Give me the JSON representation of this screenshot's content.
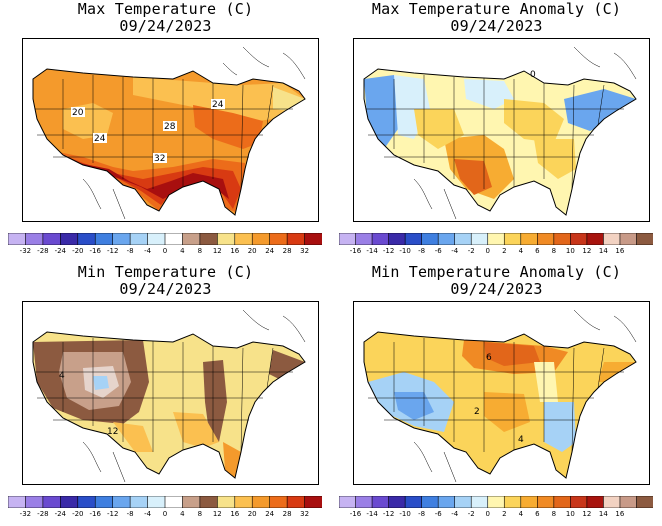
{
  "panels": [
    {
      "title": "Max Temperature (C)",
      "date": "09/24/2023",
      "kind": "abs",
      "map_labels": [
        "20",
        "24",
        "28",
        "24",
        "32"
      ],
      "legend_ticks": [
        "-32",
        "-28",
        "-24",
        "-20",
        "-16",
        "-12",
        "-8",
        "-4",
        "0",
        "4",
        "8",
        "12",
        "16",
        "20",
        "24",
        "28",
        "32"
      ]
    },
    {
      "title": "Max Temperature Anomaly (C)",
      "date": "09/24/2023",
      "kind": "anom",
      "map_labels": [
        "0"
      ],
      "legend_ticks": [
        "-16",
        "-14",
        "-12",
        "-10",
        "-8",
        "-6",
        "-4",
        "-2",
        "0",
        "2",
        "4",
        "6",
        "8",
        "10",
        "12",
        "14",
        "16"
      ]
    },
    {
      "title": "Min Temperature (C)",
      "date": "09/24/2023",
      "kind": "abs",
      "map_labels": [
        "4",
        "12"
      ],
      "legend_ticks": [
        "-32",
        "-28",
        "-24",
        "-20",
        "-16",
        "-12",
        "-8",
        "-4",
        "0",
        "4",
        "8",
        "12",
        "16",
        "20",
        "24",
        "28",
        "32"
      ]
    },
    {
      "title": "Min Temperature Anomaly (C)",
      "date": "09/24/2023",
      "kind": "anom",
      "map_labels": [
        "6",
        "2",
        "4"
      ],
      "legend_ticks": [
        "-16",
        "-14",
        "-12",
        "-10",
        "-8",
        "-6",
        "-4",
        "-2",
        "0",
        "2",
        "4",
        "6",
        "8",
        "10",
        "12",
        "14",
        "16"
      ]
    }
  ],
  "colors": {
    "abs_scale": [
      "#c6b3f2",
      "#9a7fe6",
      "#6a4ad0",
      "#3a2aa8",
      "#2a4ec8",
      "#3f7fe0",
      "#6aa6ee",
      "#a6d2f6",
      "#d8f0fb",
      "#ffffff",
      "#c8a08a",
      "#8c5a40",
      "#f7e28a",
      "#fbc050",
      "#f49a2c",
      "#ec6c1a",
      "#d83a12",
      "#a80f0f"
    ],
    "anom_scale": [
      "#c6b3f2",
      "#9a7fe6",
      "#6a4ad0",
      "#3a2aa8",
      "#2a4ec8",
      "#3f7fe0",
      "#6aa6ee",
      "#a6d2f6",
      "#d8f0fb",
      "#fff6b0",
      "#fbd45a",
      "#f7ac32",
      "#f08a24",
      "#e2661a",
      "#c8361a",
      "#a8140e",
      "#f2d2c2",
      "#c89a88",
      "#8c5a40"
    ]
  }
}
